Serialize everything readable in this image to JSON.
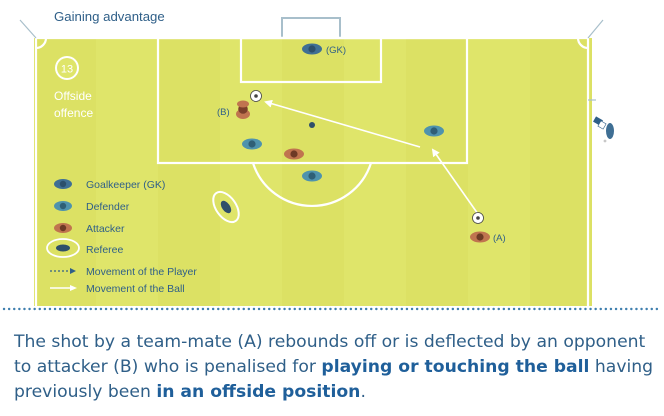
{
  "header": {
    "title": "Gaining advantage"
  },
  "badge": {
    "number": "13"
  },
  "section_label": {
    "line1": "Offside",
    "line2": "offence"
  },
  "players": {
    "goalkeeper_label": "(GK)",
    "attacker_a_label": "(A)",
    "attacker_b_label": "(B)"
  },
  "legend": {
    "items": [
      {
        "icon": "goalkeeper-icon",
        "label": "Goalkeeper (GK)"
      },
      {
        "icon": "defender-icon",
        "label": "Defender"
      },
      {
        "icon": "attacker-icon",
        "label": "Attacker"
      },
      {
        "icon": "referee-icon",
        "label": "Referee"
      },
      {
        "icon": "player-movement-arrow-icon",
        "label": "Movement of the Player"
      },
      {
        "icon": "ball-movement-arrow-icon",
        "label": "Movement of the Ball"
      }
    ]
  },
  "caption": {
    "part1": "The shot by a team-mate (A) rebounds off or is deflected by an opponent to attacker (B) who is penalised for ",
    "bold1": "playing or touching the ball",
    "part2": " having previously been ",
    "bold2": "in an offside position",
    "part3": "."
  },
  "colors": {
    "pitch": "#dfe56a",
    "pitch_dark_band": "#d3da55",
    "line": "#ffffff",
    "dots": "#3f7fae",
    "title_text": "#2f5f88",
    "goalkeeper": "#3f6f94",
    "defender": "#4f93ad",
    "attacker": "#a85a3c",
    "badge_border": "#ffffff"
  }
}
